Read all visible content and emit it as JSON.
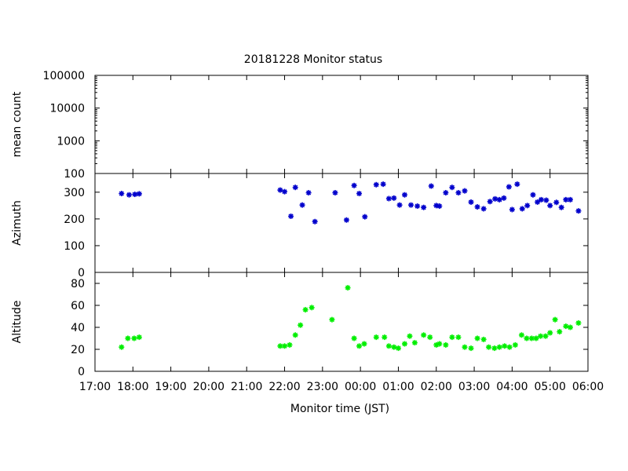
{
  "chart_data": {
    "type": "scatter",
    "title": "20181228 Monitor status",
    "xlabel": "Monitor time (JST)",
    "x_ticks": [
      "17:00",
      "18:00",
      "19:00",
      "20:00",
      "21:00",
      "22:00",
      "23:00",
      "00:00",
      "01:00",
      "02:00",
      "03:00",
      "04:00",
      "05:00",
      "06:00"
    ],
    "xlim": [
      "17:00",
      "06:00"
    ],
    "grid": false,
    "panels": [
      {
        "ylabel": "mean count",
        "yscale": "log",
        "ylim": [
          100,
          100000
        ],
        "y_ticks": [
          "100",
          "1000",
          "10000",
          "100000"
        ],
        "points": []
      },
      {
        "ylabel": "Azimuth",
        "ylim": [
          0,
          370
        ],
        "y_ticks": [
          "0",
          "100",
          "200",
          "300"
        ],
        "color": "#0000cc",
        "points": [
          [
            "17:42",
            295
          ],
          [
            "17:54",
            290
          ],
          [
            "18:03",
            292
          ],
          [
            "18:10",
            294
          ],
          [
            "21:53",
            308
          ],
          [
            "22:00",
            302
          ],
          [
            "22:10",
            210
          ],
          [
            "22:17",
            318
          ],
          [
            "22:28",
            252
          ],
          [
            "22:38",
            298
          ],
          [
            "22:48",
            190
          ],
          [
            "23:20",
            298
          ],
          [
            "23:38",
            196
          ],
          [
            "23:50",
            325
          ],
          [
            "23:58",
            295
          ],
          [
            "00:07",
            208
          ],
          [
            "00:25",
            328
          ],
          [
            "00:36",
            330
          ],
          [
            "00:45",
            276
          ],
          [
            "00:53",
            278
          ],
          [
            "01:02",
            252
          ],
          [
            "01:10",
            290
          ],
          [
            "01:20",
            252
          ],
          [
            "01:30",
            248
          ],
          [
            "01:40",
            243
          ],
          [
            "01:52",
            323
          ],
          [
            "02:00",
            250
          ],
          [
            "02:05",
            248
          ],
          [
            "02:15",
            298
          ],
          [
            "02:25",
            318
          ],
          [
            "02:35",
            298
          ],
          [
            "02:45",
            305
          ],
          [
            "02:55",
            263
          ],
          [
            "03:05",
            245
          ],
          [
            "03:15",
            238
          ],
          [
            "03:25",
            265
          ],
          [
            "03:33",
            275
          ],
          [
            "03:40",
            272
          ],
          [
            "03:47",
            278
          ],
          [
            "03:55",
            320
          ],
          [
            "04:00",
            235
          ],
          [
            "04:08",
            330
          ],
          [
            "04:16",
            238
          ],
          [
            "04:24",
            250
          ],
          [
            "04:33",
            290
          ],
          [
            "04:40",
            263
          ],
          [
            "04:46",
            272
          ],
          [
            "04:54",
            270
          ],
          [
            "05:00",
            250
          ],
          [
            "05:10",
            262
          ],
          [
            "05:18",
            243
          ],
          [
            "05:25",
            272
          ],
          [
            "05:32",
            272
          ],
          [
            "05:45",
            230
          ]
        ]
      },
      {
        "ylabel": "Altitude",
        "ylim": [
          0,
          90
        ],
        "y_ticks": [
          "0",
          "20",
          "40",
          "60",
          "80"
        ],
        "color": "#00ee00",
        "points": [
          [
            "17:42",
            22
          ],
          [
            "17:52",
            30
          ],
          [
            "18:02",
            30
          ],
          [
            "18:10",
            31
          ],
          [
            "21:53",
            23
          ],
          [
            "22:00",
            23
          ],
          [
            "22:08",
            24
          ],
          [
            "22:17",
            33
          ],
          [
            "22:25",
            42
          ],
          [
            "22:33",
            56
          ],
          [
            "22:43",
            58
          ],
          [
            "23:15",
            47
          ],
          [
            "23:40",
            76
          ],
          [
            "23:50",
            30
          ],
          [
            "23:58",
            23
          ],
          [
            "00:06",
            25
          ],
          [
            "00:25",
            31
          ],
          [
            "00:38",
            31
          ],
          [
            "00:45",
            23
          ],
          [
            "00:53",
            22
          ],
          [
            "01:00",
            21
          ],
          [
            "01:10",
            25
          ],
          [
            "01:18",
            32
          ],
          [
            "01:26",
            26
          ],
          [
            "01:40",
            33
          ],
          [
            "01:50",
            31
          ],
          [
            "02:00",
            24
          ],
          [
            "02:05",
            25
          ],
          [
            "02:15",
            24
          ],
          [
            "02:25",
            31
          ],
          [
            "02:35",
            31
          ],
          [
            "02:45",
            22
          ],
          [
            "02:55",
            21
          ],
          [
            "03:05",
            30
          ],
          [
            "03:15",
            29
          ],
          [
            "03:23",
            22
          ],
          [
            "03:32",
            21
          ],
          [
            "03:40",
            22
          ],
          [
            "03:48",
            23
          ],
          [
            "03:56",
            22
          ],
          [
            "04:05",
            24
          ],
          [
            "04:15",
            33
          ],
          [
            "04:23",
            30
          ],
          [
            "04:31",
            30
          ],
          [
            "04:38",
            30
          ],
          [
            "04:45",
            32
          ],
          [
            "04:53",
            32
          ],
          [
            "05:00",
            35
          ],
          [
            "05:08",
            47
          ],
          [
            "05:15",
            36
          ],
          [
            "05:25",
            41
          ],
          [
            "05:32",
            40
          ],
          [
            "05:45",
            44
          ]
        ]
      }
    ]
  }
}
